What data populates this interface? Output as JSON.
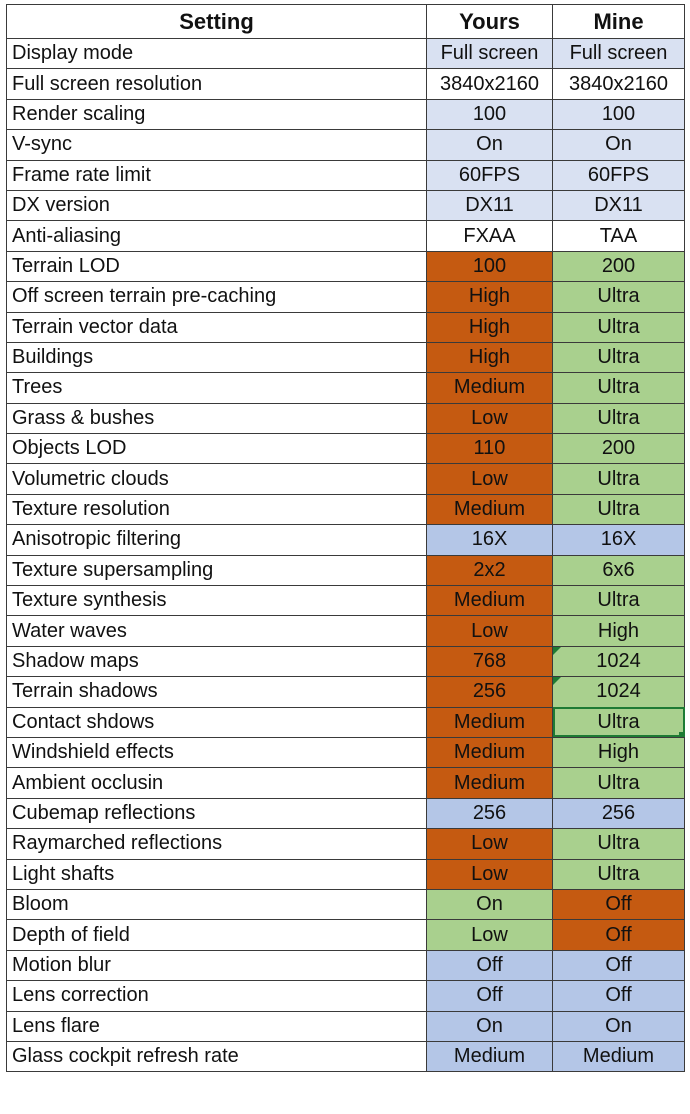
{
  "table": {
    "headers": [
      "Setting",
      "Yours",
      "Mine"
    ],
    "rows": [
      {
        "setting": "Display mode",
        "yours": "Full screen",
        "mine": "Full screen",
        "yours_color": "gray",
        "mine_color": "gray"
      },
      {
        "setting": "Full screen resolution",
        "yours": "3840x2160",
        "mine": "3840x2160",
        "yours_color": "plain",
        "mine_color": "plain"
      },
      {
        "setting": "Render scaling",
        "yours": "100",
        "mine": "100",
        "yours_color": "gray",
        "mine_color": "gray"
      },
      {
        "setting": "V-sync",
        "yours": "On",
        "mine": "On",
        "yours_color": "gray",
        "mine_color": "gray"
      },
      {
        "setting": "Frame rate limit",
        "yours": "60FPS",
        "mine": "60FPS",
        "yours_color": "gray",
        "mine_color": "gray"
      },
      {
        "setting": "DX version",
        "yours": "DX11",
        "mine": "DX11",
        "yours_color": "gray",
        "mine_color": "gray"
      },
      {
        "setting": "Anti-aliasing",
        "yours": "FXAA",
        "mine": "TAA",
        "yours_color": "plain",
        "mine_color": "plain"
      },
      {
        "setting": "Terrain LOD",
        "yours": "100",
        "mine": "200",
        "yours_color": "orange",
        "mine_color": "green"
      },
      {
        "setting": "Off screen terrain pre-caching",
        "yours": "High",
        "mine": "Ultra",
        "yours_color": "orange",
        "mine_color": "green"
      },
      {
        "setting": "Terrain vector data",
        "yours": "High",
        "mine": "Ultra",
        "yours_color": "orange",
        "mine_color": "green"
      },
      {
        "setting": "Buildings",
        "yours": "High",
        "mine": "Ultra",
        "yours_color": "orange",
        "mine_color": "green"
      },
      {
        "setting": "Trees",
        "yours": "Medium",
        "mine": "Ultra",
        "yours_color": "orange",
        "mine_color": "green"
      },
      {
        "setting": "Grass & bushes",
        "yours": "Low",
        "mine": "Ultra",
        "yours_color": "orange",
        "mine_color": "green"
      },
      {
        "setting": "Objects LOD",
        "yours": "110",
        "mine": "200",
        "yours_color": "orange",
        "mine_color": "green"
      },
      {
        "setting": "Volumetric clouds",
        "yours": "Low",
        "mine": "Ultra",
        "yours_color": "orange",
        "mine_color": "green"
      },
      {
        "setting": "Texture resolution",
        "yours": "Medium",
        "mine": "Ultra",
        "yours_color": "orange",
        "mine_color": "green"
      },
      {
        "setting": "Anisotropic filtering",
        "yours": "16X",
        "mine": "16X",
        "yours_color": "blue",
        "mine_color": "blue"
      },
      {
        "setting": "Texture supersampling",
        "yours": "2x2",
        "mine": "6x6",
        "yours_color": "orange",
        "mine_color": "green"
      },
      {
        "setting": "Texture synthesis",
        "yours": "Medium",
        "mine": "Ultra",
        "yours_color": "orange",
        "mine_color": "green"
      },
      {
        "setting": "Water waves",
        "yours": "Low",
        "mine": "High",
        "yours_color": "orange",
        "mine_color": "green"
      },
      {
        "setting": "Shadow maps",
        "yours": "768",
        "mine": "1024",
        "yours_color": "orange",
        "mine_color": "green",
        "mine_flag": true
      },
      {
        "setting": "Terrain shadows",
        "yours": "256",
        "mine": "1024",
        "yours_color": "orange",
        "mine_color": "green",
        "mine_flag": true
      },
      {
        "setting": "Contact shdows",
        "yours": "Medium",
        "mine": "Ultra",
        "yours_color": "orange",
        "mine_color": "green",
        "mine_selected": true
      },
      {
        "setting": "Windshield effects",
        "yours": "Medium",
        "mine": "High",
        "yours_color": "orange",
        "mine_color": "green"
      },
      {
        "setting": "Ambient occlusin",
        "yours": "Medium",
        "mine": "Ultra",
        "yours_color": "orange",
        "mine_color": "green"
      },
      {
        "setting": "Cubemap reflections",
        "yours": "256",
        "mine": "256",
        "yours_color": "blue",
        "mine_color": "blue"
      },
      {
        "setting": "Raymarched reflections",
        "yours": "Low",
        "mine": "Ultra",
        "yours_color": "orange",
        "mine_color": "green"
      },
      {
        "setting": "Light shafts",
        "yours": "Low",
        "mine": "Ultra",
        "yours_color": "orange",
        "mine_color": "green"
      },
      {
        "setting": "Bloom",
        "yours": "On",
        "mine": "Off",
        "yours_color": "green",
        "mine_color": "orange"
      },
      {
        "setting": "Depth of field",
        "yours": "Low",
        "mine": "Off",
        "yours_color": "green",
        "mine_color": "orange"
      },
      {
        "setting": "Motion blur",
        "yours": "Off",
        "mine": "Off",
        "yours_color": "blue",
        "mine_color": "blue"
      },
      {
        "setting": "Lens correction",
        "yours": "Off",
        "mine": "Off",
        "yours_color": "blue",
        "mine_color": "blue"
      },
      {
        "setting": "Lens flare",
        "yours": "On",
        "mine": "On",
        "yours_color": "blue",
        "mine_color": "blue"
      },
      {
        "setting": "Glass cockpit refresh rate",
        "yours": "Medium",
        "mine": "Medium",
        "yours_color": "blue",
        "mine_color": "blue"
      }
    ]
  },
  "colors": {
    "plain": "#ffffff",
    "gray": "#d9e1f2",
    "blue": "#b4c6e7",
    "orange": "#c55a11",
    "green": "#a9d08e",
    "selection": "#1e7b34"
  }
}
